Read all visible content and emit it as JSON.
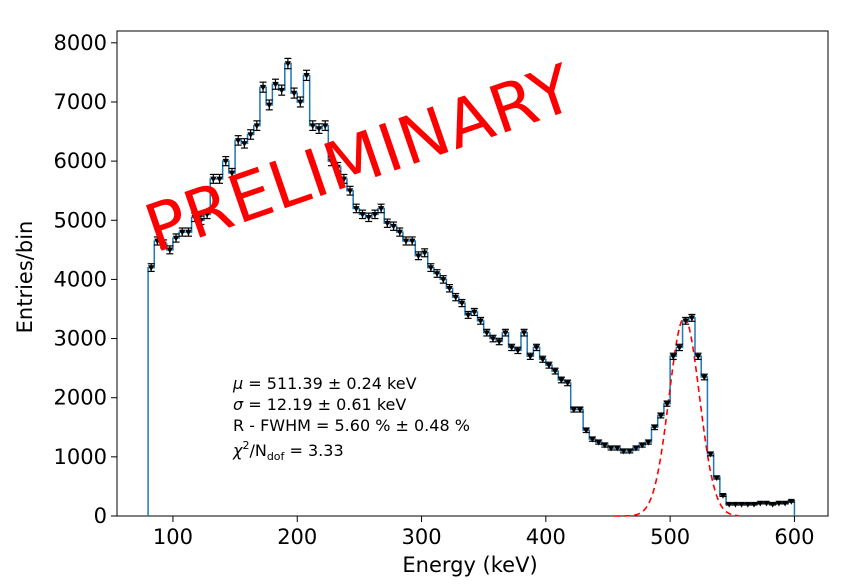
{
  "chart_data": {
    "type": "histogram",
    "xlabel": "Energy (keV)",
    "ylabel": "Entries/bin",
    "xlim": [
      55,
      627
    ],
    "ylim": [
      0,
      8200
    ],
    "xticks": [
      100,
      200,
      300,
      400,
      500,
      600
    ],
    "yticks": [
      0,
      1000,
      2000,
      3000,
      4000,
      5000,
      6000,
      7000,
      8000
    ],
    "bin_width": 5,
    "series": [
      {
        "name": "data",
        "style": "step",
        "color": "#1f77b4",
        "x": [
          80,
          85,
          90,
          95,
          100,
          105,
          110,
          115,
          120,
          125,
          130,
          135,
          140,
          145,
          150,
          155,
          160,
          165,
          170,
          175,
          180,
          185,
          190,
          195,
          200,
          205,
          210,
          215,
          220,
          225,
          230,
          235,
          240,
          245,
          250,
          255,
          260,
          265,
          270,
          275,
          280,
          285,
          290,
          295,
          300,
          305,
          310,
          315,
          320,
          325,
          330,
          335,
          340,
          345,
          350,
          355,
          360,
          365,
          370,
          375,
          380,
          385,
          390,
          395,
          400,
          405,
          410,
          415,
          420,
          425,
          430,
          435,
          440,
          445,
          450,
          455,
          460,
          465,
          470,
          475,
          480,
          485,
          490,
          495,
          500,
          505,
          510,
          515,
          520,
          525,
          530,
          535,
          540,
          545,
          550,
          555,
          560,
          565,
          570,
          575,
          580,
          585,
          590,
          595
        ],
        "values": [
          4200,
          4650,
          4600,
          4500,
          4700,
          4800,
          4800,
          5050,
          5000,
          5100,
          5700,
          5700,
          6000,
          5800,
          6350,
          6300,
          6450,
          6600,
          7250,
          6950,
          7300,
          7200,
          7650,
          7150,
          7000,
          7450,
          6600,
          6550,
          6600,
          6000,
          5900,
          5700,
          5500,
          5200,
          5100,
          5050,
          5100,
          5200,
          4950,
          4900,
          4800,
          4650,
          4650,
          4400,
          4450,
          4200,
          4100,
          4000,
          3850,
          3700,
          3600,
          3400,
          3450,
          3300,
          3100,
          3000,
          2950,
          3100,
          2850,
          2800,
          3100,
          2700,
          2850,
          2650,
          2550,
          2450,
          2300,
          2250,
          1800,
          1800,
          1450,
          1300,
          1250,
          1200,
          1150,
          1150,
          1100,
          1100,
          1150,
          1200,
          1250,
          1500,
          1700,
          1900,
          2700,
          2850,
          3300,
          3350,
          2700,
          2350,
          1050,
          650,
          350,
          200,
          200,
          200,
          200,
          200,
          220,
          220,
          200,
          220,
          220,
          250
        ],
        "errors": [
          65,
          68,
          68,
          67,
          69,
          69,
          69,
          71,
          71,
          71,
          75,
          75,
          77,
          76,
          80,
          79,
          80,
          81,
          85,
          83,
          85,
          85,
          87,
          85,
          84,
          86,
          81,
          81,
          81,
          77,
          77,
          75,
          74,
          72,
          71,
          71,
          71,
          72,
          70,
          70,
          69,
          68,
          68,
          66,
          67,
          65,
          64,
          63,
          62,
          61,
          60,
          58,
          59,
          57,
          56,
          55,
          54,
          56,
          53,
          53,
          56,
          52,
          53,
          51,
          50,
          49,
          48,
          47,
          42,
          42,
          38,
          36,
          35,
          35,
          34,
          34,
          33,
          33,
          34,
          35,
          35,
          39,
          41,
          44,
          52,
          53,
          57,
          58,
          52,
          48,
          32,
          25,
          19,
          14,
          14,
          14,
          14,
          14,
          15,
          15,
          14,
          15,
          15,
          16
        ]
      },
      {
        "name": "gaussian fit",
        "style": "dashed",
        "color": "#ff0000",
        "mu": 511.39,
        "sigma": 12.19,
        "amplitude": 3350,
        "range": [
          455,
          555
        ]
      }
    ],
    "annotations": [
      "μ = 511.39 ± 0.24 keV",
      "σ = 12.19 ± 0.61 keV",
      "R - FWHM = 5.60 % ± 0.48 %",
      "χ2/Ndof  = 3.33"
    ],
    "watermark": "PRELIMINARY"
  },
  "fit": {
    "mu_symbol": "μ",
    "mu_text": " = 511.39 ± 0.24 keV",
    "sigma_symbol": "σ",
    "sigma_text": " = 12.19 ± 0.61 keV",
    "fwhm_text": "R - FWHM = 5.60 % ± 0.48 %",
    "chi_symbol": "χ",
    "chi_exp": "2",
    "chi_slash": "/N",
    "chi_sub": "dof",
    "chi_text": "  = 3.33"
  },
  "watermark_text": "PRELIMINARY"
}
